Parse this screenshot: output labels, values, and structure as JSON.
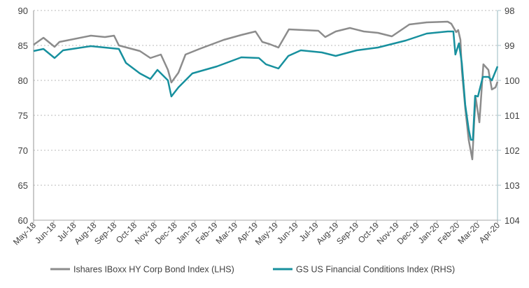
{
  "chart_data": {
    "type": "line",
    "title": "",
    "x_unit": "months since May-18",
    "x_tick_labels": [
      "May-18",
      "Jun-18",
      "Jul-18",
      "Aug-18",
      "Sep-18",
      "Oct-18",
      "Nov-18",
      "Dec-18",
      "Jan-19",
      "Feb-19",
      "Mar-19",
      "Apr-19",
      "May-19",
      "Jun-19",
      "Jul-19",
      "Aug-19",
      "Sep-19",
      "Oct-19",
      "Nov-19",
      "Dec-19",
      "Jan-20",
      "Feb-20",
      "Mar-20",
      "Apr-20"
    ],
    "y_left": {
      "label": "",
      "ylim": [
        60,
        90
      ],
      "ticks": [
        "60",
        "65",
        "70",
        "75",
        "80",
        "85",
        "90"
      ]
    },
    "y_right": {
      "label": "",
      "ylim": [
        104,
        98
      ],
      "inverted": true,
      "ticks": [
        "104",
        "103",
        "102",
        "101",
        "100",
        "99",
        "98"
      ]
    },
    "grid": true,
    "legend_position": "bottom",
    "series": [
      {
        "name": "Ishares IBoxx HY Corp Bond Index (LHS)",
        "axis": "left",
        "color": "#8c8c8c",
        "x": [
          0,
          0.49,
          1.04,
          1.28,
          2.84,
          3.54,
          3.99,
          4.23,
          5.27,
          5.79,
          6.31,
          6.66,
          6.83,
          7.18,
          7.53,
          8.22,
          9.43,
          10.3,
          11.0,
          11.34,
          11.69,
          12.14,
          12.66,
          14.12,
          14.46,
          14.98,
          15.68,
          16.37,
          17.07,
          17.76,
          18.63,
          19.49,
          20.53,
          20.71,
          20.95,
          21.05,
          21.16,
          21.23,
          21.4,
          21.57,
          21.75,
          21.85,
          21.92,
          22.1,
          22.3,
          22.55,
          22.72,
          22.9,
          23.0
        ],
        "y": [
          85.1,
          86.1,
          84.8,
          85.5,
          86.4,
          86.2,
          86.4,
          85.0,
          84.2,
          83.2,
          83.7,
          81.5,
          79.7,
          81.1,
          83.7,
          84.5,
          85.8,
          86.5,
          87.0,
          85.5,
          85.2,
          84.7,
          87.3,
          87.1,
          86.2,
          87.0,
          87.5,
          87.0,
          86.8,
          86.3,
          88.0,
          88.3,
          88.4,
          88.1,
          86.9,
          87.2,
          85.8,
          81.5,
          76.0,
          71.5,
          68.7,
          74.5,
          77.5,
          74.0,
          82.3,
          81.5,
          78.7,
          79.0,
          79.8
        ]
      },
      {
        "name": "GS US Financial Conditions Index (RHS)",
        "axis": "right",
        "color": "#17909e",
        "x": [
          0,
          0.49,
          1.04,
          1.46,
          2.84,
          4.23,
          4.58,
          5.27,
          5.79,
          6.14,
          6.66,
          6.83,
          7.18,
          7.87,
          9.09,
          10.3,
          11.17,
          11.52,
          12.14,
          12.63,
          13.25,
          14.29,
          14.98,
          16.02,
          17.07,
          18.45,
          19.49,
          20.53,
          20.81,
          20.91,
          21.09,
          21.23,
          21.4,
          21.57,
          21.68,
          21.78,
          21.89,
          22.03,
          22.27,
          22.55,
          22.72,
          23.0
        ],
        "y": [
          99.16,
          99.1,
          99.36,
          99.14,
          99.02,
          99.1,
          99.5,
          99.8,
          99.96,
          99.7,
          100.0,
          100.46,
          100.2,
          99.8,
          99.6,
          99.34,
          99.36,
          99.54,
          99.66,
          99.3,
          99.14,
          99.2,
          99.3,
          99.14,
          99.06,
          98.86,
          98.66,
          98.6,
          98.6,
          99.26,
          98.94,
          99.5,
          100.7,
          101.4,
          101.7,
          101.7,
          100.44,
          100.46,
          99.9,
          99.9,
          100.0,
          99.6
        ]
      }
    ]
  }
}
